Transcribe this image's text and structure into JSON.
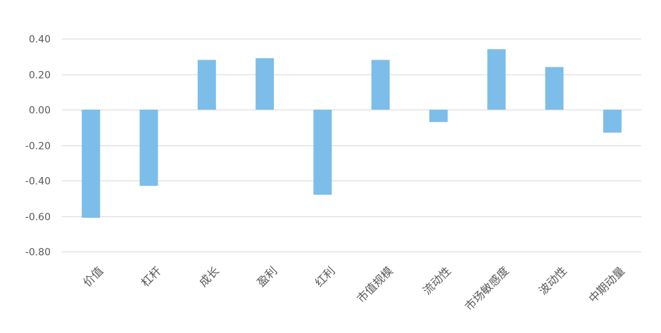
{
  "chart_data": {
    "type": "bar",
    "title": "",
    "xlabel": "",
    "ylabel": "",
    "ylim": [
      -0.8,
      0.4
    ],
    "yticks": [
      0.4,
      0.2,
      0.0,
      -0.2,
      -0.4,
      -0.6,
      -0.8
    ],
    "ytick_labels": [
      "0.40",
      "0.20",
      "0.00",
      "-0.20",
      "-0.40",
      "-0.60",
      "-0.80"
    ],
    "grid": true,
    "legend": "none",
    "bar_color": "#7dbde9",
    "categories": [
      "价值",
      "杠杆",
      "成长",
      "盈利",
      "红利",
      "市值规模",
      "流动性",
      "市场敏感度",
      "波动性",
      "中期动量"
    ],
    "values": [
      -0.61,
      -0.43,
      0.28,
      0.29,
      -0.48,
      0.28,
      -0.07,
      0.34,
      0.24,
      -0.13
    ]
  }
}
